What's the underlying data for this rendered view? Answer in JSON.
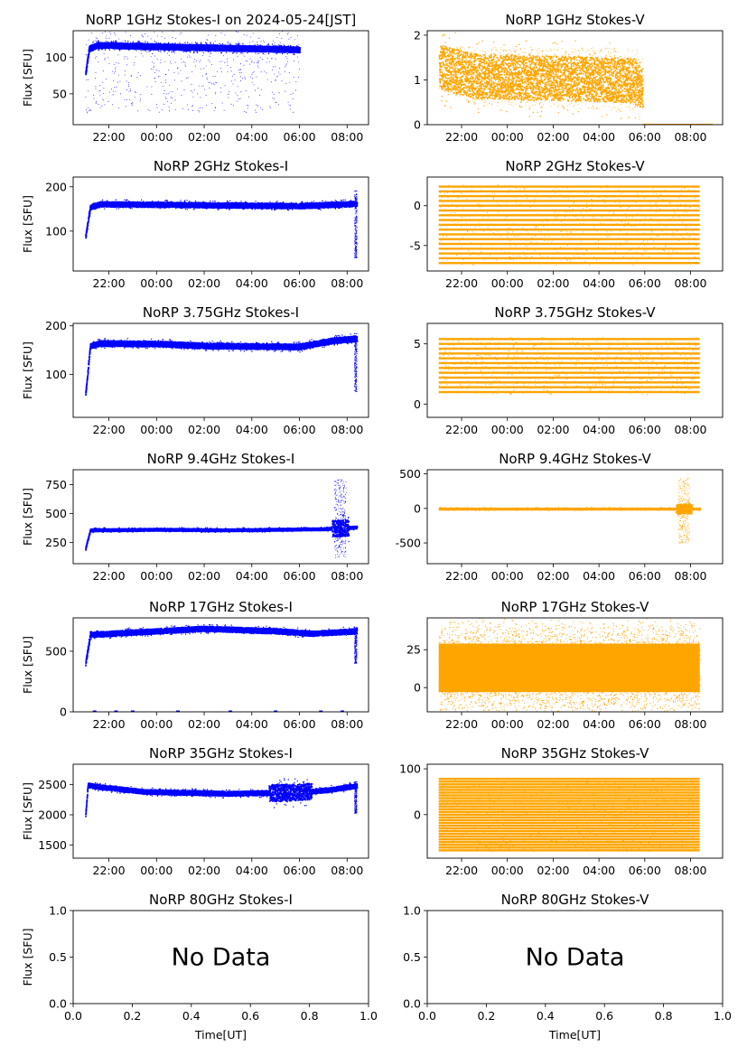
{
  "colors": {
    "stokes_i": "#0000ff",
    "stokes_v": "#ffa500",
    "axis": "#000000",
    "background": "#ffffff"
  },
  "time_ticks": [
    "22:00",
    "00:00",
    "02:00",
    "04:00",
    "06:00",
    "08:00"
  ],
  "no_data_text": "No Data",
  "chart_data": [
    {
      "type": "scatter",
      "title": "NoRP 1GHz Stokes-I on 2024-05-24[JST]",
      "ylabel": "Flux [SFU]",
      "xlabel": "",
      "ylim": [
        8,
        136
      ],
      "yticks": [
        50,
        100
      ],
      "series": [
        {
          "color_key": "stokes_i"
        }
      ],
      "x_start_hours": 21.0,
      "x_end_hours": 30.0,
      "xlim_hours": [
        20.5,
        32.9
      ],
      "profile": [
        [
          0,
          78
        ],
        [
          0.15,
          112
        ],
        [
          0.5,
          117
        ],
        [
          3,
          115
        ],
        [
          6,
          113
        ],
        [
          8.8,
          111
        ]
      ],
      "spread": 4,
      "spike_max": 3,
      "cutoff_hours": 30.0
    },
    {
      "type": "scatter",
      "title": "NoRP 1GHz Stokes-V",
      "ylabel": "",
      "xlabel": "",
      "ylim": [
        0,
        2.1
      ],
      "yticks": [
        0,
        1,
        2
      ],
      "series": [
        {
          "color_key": "stokes_v"
        }
      ],
      "x_start_hours": 21.0,
      "x_end_hours": 32.9,
      "xlim_hours": [
        20.5,
        33.4
      ],
      "profile": [
        [
          0,
          1.3
        ],
        [
          1.5,
          1.1
        ],
        [
          5,
          1.05
        ],
        [
          8.5,
          1.0
        ],
        [
          8.9,
          0.85
        ]
      ],
      "spread": 0.5,
      "spike_max": 1.9,
      "cutoff_hours": 29.9,
      "after_cutoff_value": 0.0
    },
    {
      "type": "scatter",
      "title": "NoRP 2GHz Stokes-I",
      "ylabel": "Flux [SFU]",
      "xlabel": "",
      "ylim": [
        10,
        222
      ],
      "yticks": [
        100,
        200
      ],
      "series": [
        {
          "color_key": "stokes_i"
        }
      ],
      "x_start_hours": 21.0,
      "x_end_hours": 32.4,
      "xlim_hours": [
        20.5,
        32.9
      ],
      "profile": [
        [
          0,
          88
        ],
        [
          0.2,
          155
        ],
        [
          0.6,
          162
        ],
        [
          5,
          160
        ],
        [
          9,
          158
        ],
        [
          11.4,
          163
        ]
      ],
      "spread": 6,
      "spike_max": 192,
      "spike_min": 40
    },
    {
      "type": "scatter",
      "title": "NoRP 2GHz Stokes-V",
      "ylabel": "",
      "xlabel": "",
      "ylim": [
        -8.2,
        3.6
      ],
      "yticks": [
        -5,
        0
      ],
      "series": [
        {
          "color_key": "stokes_v"
        }
      ],
      "x_start_hours": 21.0,
      "x_end_hours": 32.4,
      "xlim_hours": [
        20.5,
        33.4
      ],
      "levels_min": -7.2,
      "levels_max": 2.4,
      "level_step": 0.6
    },
    {
      "type": "scatter",
      "title": "NoRP 3.75GHz Stokes-I",
      "ylabel": "Flux [SFU]",
      "xlabel": "",
      "ylim": [
        12,
        205
      ],
      "yticks": [
        100,
        200
      ],
      "series": [
        {
          "color_key": "stokes_i"
        }
      ],
      "x_start_hours": 21.0,
      "x_end_hours": 32.4,
      "xlim_hours": [
        20.5,
        32.9
      ],
      "profile": [
        [
          0,
          60
        ],
        [
          0.2,
          160
        ],
        [
          0.6,
          165
        ],
        [
          3,
          164
        ],
        [
          5,
          160
        ],
        [
          9,
          158
        ],
        [
          10.3,
          170
        ],
        [
          11.4,
          175
        ]
      ],
      "spread": 6,
      "spike_max": 180,
      "spike_min": 65
    },
    {
      "type": "scatter",
      "title": "NoRP 3.75GHz Stokes-V",
      "ylabel": "",
      "xlabel": "",
      "ylim": [
        -1.1,
        6.7
      ],
      "yticks": [
        0,
        5
      ],
      "series": [
        {
          "color_key": "stokes_v"
        }
      ],
      "x_start_hours": 21.0,
      "x_end_hours": 32.4,
      "xlim_hours": [
        20.5,
        33.4
      ],
      "levels_min": 1.0,
      "levels_max": 5.4,
      "level_step": 0.4
    },
    {
      "type": "scatter",
      "title": "NoRP 9.4GHz Stokes-I",
      "ylabel": "Flux [SFU]",
      "xlabel": "",
      "ylim": [
        65,
        880
      ],
      "yticks": [
        250,
        500,
        750
      ],
      "series": [
        {
          "color_key": "stokes_i"
        }
      ],
      "x_start_hours": 21.0,
      "x_end_hours": 32.4,
      "xlim_hours": [
        20.5,
        32.9
      ],
      "profile": [
        [
          0,
          200
        ],
        [
          0.2,
          360
        ],
        [
          3,
          365
        ],
        [
          6,
          360
        ],
        [
          10,
          370
        ],
        [
          11.4,
          385
        ]
      ],
      "spread": 12,
      "spike_max": 800,
      "spike_min": 120,
      "burst_hours": 31.7
    },
    {
      "type": "scatter",
      "title": "NoRP 9.4GHz Stokes-V",
      "ylabel": "",
      "xlabel": "",
      "ylim": [
        -800,
        560
      ],
      "yticks": [
        -500,
        0,
        500
      ],
      "series": [
        {
          "color_key": "stokes_v"
        }
      ],
      "x_start_hours": 21.0,
      "x_end_hours": 32.4,
      "xlim_hours": [
        20.5,
        33.4
      ],
      "profile": [
        [
          0,
          0
        ],
        [
          11.4,
          0
        ]
      ],
      "spread": 12,
      "spike_max": 450,
      "spike_min": -500,
      "burst_hours": 31.7
    },
    {
      "type": "scatter",
      "title": "NoRP 17GHz Stokes-I",
      "ylabel": "Flux [SFU]",
      "xlabel": "",
      "ylim": [
        0,
        775
      ],
      "yticks": [
        0,
        500
      ],
      "series": [
        {
          "color_key": "stokes_i"
        }
      ],
      "x_start_hours": 21.0,
      "x_end_hours": 32.4,
      "xlim_hours": [
        20.5,
        32.9
      ],
      "profile": [
        [
          0,
          400
        ],
        [
          0.2,
          640
        ],
        [
          2,
          660
        ],
        [
          5,
          690
        ],
        [
          8,
          670
        ],
        [
          9.5,
          650
        ],
        [
          11.4,
          670
        ]
      ],
      "spread": 22,
      "spike_max": 700,
      "spike_min": 400,
      "zero_hours": [
        21.4,
        22.3,
        23.0,
        24.9,
        27.1,
        29.0,
        30.9,
        31.8
      ]
    },
    {
      "type": "scatter",
      "title": "NoRP 17GHz Stokes-V",
      "ylabel": "",
      "xlabel": "",
      "ylim": [
        -16,
        46
      ],
      "yticks": [
        0,
        25
      ],
      "series": [
        {
          "color_key": "stokes_v"
        }
      ],
      "x_start_hours": 21.0,
      "x_end_hours": 32.4,
      "xlim_hours": [
        20.5,
        33.4
      ],
      "band_min": -7,
      "band_max": 33,
      "spike_max": 42,
      "spike_min": -12
    },
    {
      "type": "scatter",
      "title": "NoRP 35GHz Stokes-I",
      "ylabel": "Flux [SFU]",
      "xlabel": "",
      "ylim": [
        1280,
        2840
      ],
      "yticks": [
        1500,
        2000,
        2500
      ],
      "series": [
        {
          "color_key": "stokes_i"
        }
      ],
      "x_start_hours": 21.0,
      "x_end_hours": 32.4,
      "xlim_hours": [
        20.5,
        32.9
      ],
      "profile": [
        [
          0,
          2000
        ],
        [
          0.1,
          2500
        ],
        [
          0.4,
          2480
        ],
        [
          2.5,
          2390
        ],
        [
          6,
          2360
        ],
        [
          8.8,
          2380
        ],
        [
          10.2,
          2420
        ],
        [
          11.4,
          2490
        ]
      ],
      "spread": 40,
      "spike_max": 2560,
      "spike_min": 2020,
      "dip_hours": 29.6
    },
    {
      "type": "scatter",
      "title": "NoRP 35GHz Stokes-V",
      "ylabel": "",
      "xlabel": "",
      "ylim": [
        -95,
        110
      ],
      "yticks": [
        0,
        100
      ],
      "series": [
        {
          "color_key": "stokes_v"
        }
      ],
      "x_start_hours": 21.0,
      "x_end_hours": 32.4,
      "xlim_hours": [
        20.5,
        33.4
      ],
      "levels_min": -78,
      "levels_max": 78,
      "level_step": 6
    },
    {
      "type": "scatter",
      "title": "NoRP 80GHz Stokes-I",
      "ylabel": "Flux [SFU]",
      "xlabel": "Time[UT]",
      "xlim": [
        0,
        1
      ],
      "ylim": [
        0,
        1
      ],
      "xticks": [
        "0.0",
        "0.2",
        "0.4",
        "0.6",
        "0.8",
        "1.0"
      ],
      "yticks": [
        "0.0",
        "0.5",
        "1.0"
      ],
      "series": [],
      "no_data": true
    },
    {
      "type": "scatter",
      "title": "NoRP 80GHz Stokes-V",
      "ylabel": "",
      "xlabel": "Time[UT]",
      "xlim": [
        0,
        1
      ],
      "ylim": [
        0,
        1
      ],
      "xticks": [
        "0.0",
        "0.2",
        "0.4",
        "0.6",
        "0.8",
        "1.0"
      ],
      "yticks": [
        "0.0",
        "0.5",
        "1.0"
      ],
      "series": [],
      "no_data": true
    }
  ]
}
